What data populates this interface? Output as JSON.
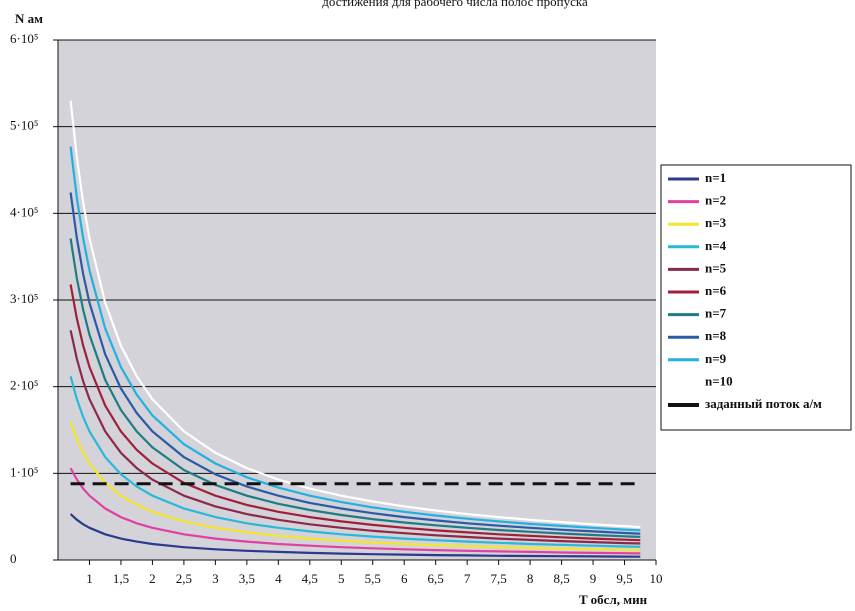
{
  "chart_data": {
    "type": "line",
    "title": "достижения для рабочего числа полос пропуска",
    "xlabel": "T обсл, мин",
    "ylabel": "N ам",
    "xlim": [
      0.5,
      10
    ],
    "ylim": [
      0,
      600000
    ],
    "x_ticks": [
      "1",
      "1,5",
      "2",
      "2,5",
      "3",
      "3,5",
      "4",
      "4,5",
      "5",
      "5,5",
      "6",
      "6,5",
      "7",
      "7,5",
      "8",
      "8,5",
      "9",
      "9,5",
      "10"
    ],
    "x_tick_values": [
      1,
      1.5,
      2,
      2.5,
      3,
      3.5,
      4,
      4.5,
      5,
      5.5,
      6,
      6.5,
      7,
      7.5,
      8,
      8.5,
      9,
      9.5,
      10
    ],
    "y_ticks": [
      "0",
      "1·10⁵",
      "2·10⁵",
      "3·10⁵",
      "4·10⁵",
      "5·10⁵",
      "6·10⁵"
    ],
    "y_tick_values": [
      0,
      100000,
      200000,
      300000,
      400000,
      500000,
      600000
    ],
    "grid": "horizontal",
    "legend_position": "right",
    "x": [
      0.7,
      0.8,
      0.9,
      1.0,
      1.25,
      1.5,
      1.75,
      2.0,
      2.5,
      3.0,
      3.5,
      4.0,
      4.5,
      5.0,
      5.5,
      6.0,
      6.5,
      7.0,
      7.5,
      8.0,
      8.5,
      9.0,
      9.5,
      9.75
    ],
    "series": [
      {
        "name": "n=1",
        "color": "#2b3a8c",
        "values": [
          53000,
          46400,
          41200,
          37100,
          29700,
          24700,
          21200,
          18500,
          14800,
          12400,
          10600,
          9300,
          8200,
          7400,
          6700,
          6200,
          5700,
          5300,
          4900,
          4600,
          4400,
          4100,
          3900,
          3800
        ]
      },
      {
        "name": "n=2",
        "color": "#e040a0",
        "values": [
          106000,
          92800,
          82400,
          74200,
          59400,
          49500,
          42400,
          37100,
          29700,
          24700,
          21200,
          18500,
          16500,
          14800,
          13500,
          12400,
          11400,
          10600,
          9900,
          9300,
          8700,
          8200,
          7800,
          7600
        ]
      },
      {
        "name": "n=3",
        "color": "#f5e62a",
        "values": [
          159000,
          139100,
          123700,
          111300,
          89000,
          74200,
          63600,
          55600,
          44500,
          37100,
          31800,
          27800,
          24700,
          22300,
          20200,
          18500,
          17100,
          15900,
          14800,
          13900,
          13100,
          12400,
          11700,
          11400
        ]
      },
      {
        "name": "n=4",
        "color": "#29b8d8",
        "values": [
          212000,
          185500,
          164900,
          148400,
          118700,
          98900,
          84800,
          74200,
          59400,
          49500,
          42400,
          37100,
          33000,
          29700,
          27000,
          24700,
          22800,
          21200,
          19800,
          18500,
          17500,
          16500,
          15600,
          15200
        ]
      },
      {
        "name": "n=5",
        "color": "#8c2848",
        "values": [
          265000,
          231900,
          206100,
          185500,
          148400,
          123700,
          106000,
          92800,
          74200,
          61800,
          53000,
          46400,
          41200,
          37100,
          33700,
          30900,
          28500,
          26500,
          24700,
          23200,
          21800,
          20600,
          19500,
          19000
        ]
      },
      {
        "name": "n=6",
        "color": "#a0203a",
        "values": [
          318000,
          278300,
          247300,
          222600,
          178100,
          148400,
          127200,
          111300,
          89000,
          74200,
          63600,
          55600,
          49500,
          44500,
          40500,
          37100,
          34200,
          31800,
          29700,
          27800,
          26200,
          24700,
          23400,
          22800
        ]
      },
      {
        "name": "n=7",
        "color": "#1f7c80",
        "values": [
          371000,
          324600,
          288600,
          259700,
          207800,
          173100,
          148400,
          129900,
          103900,
          86600,
          74200,
          64900,
          57700,
          51900,
          47200,
          43300,
          40000,
          37100,
          34600,
          32500,
          30600,
          28900,
          27300,
          26600
        ]
      },
      {
        "name": "n=8",
        "color": "#2a5aa8",
        "values": [
          424000,
          371000,
          329800,
          296800,
          237400,
          197900,
          169600,
          148400,
          118700,
          98900,
          84800,
          74200,
          65900,
          59400,
          54000,
          49500,
          45700,
          42400,
          39600,
          37100,
          34900,
          33000,
          31200,
          30400
        ]
      },
      {
        "name": "n=9",
        "color": "#22b0e0",
        "values": [
          477000,
          417400,
          371000,
          333900,
          267100,
          222600,
          190800,
          166900,
          133600,
          111300,
          95400,
          83500,
          74200,
          66800,
          60700,
          55600,
          51400,
          47700,
          44500,
          41700,
          39300,
          37100,
          35100,
          34200
        ]
      },
      {
        "name": "n=10",
        "color": "#ffffff",
        "values": [
          530000,
          463800,
          412200,
          371000,
          296800,
          247300,
          212000,
          185500,
          148400,
          123700,
          106000,
          92800,
          82400,
          74200,
          67500,
          61800,
          57100,
          53000,
          49500,
          46400,
          43700,
          41200,
          39100,
          38000
        ]
      },
      {
        "name": "заданный поток а/м",
        "color": "#111111",
        "dashed": true,
        "values": [
          88000,
          88000,
          88000,
          88000,
          88000,
          88000,
          88000,
          88000,
          88000,
          88000,
          88000,
          88000,
          88000,
          88000,
          88000,
          88000,
          88000,
          88000,
          88000,
          88000,
          88000,
          88000,
          88000,
          88000
        ]
      }
    ]
  },
  "colors": {
    "plot_background": "#d3d3d9",
    "grid": "#111111"
  }
}
